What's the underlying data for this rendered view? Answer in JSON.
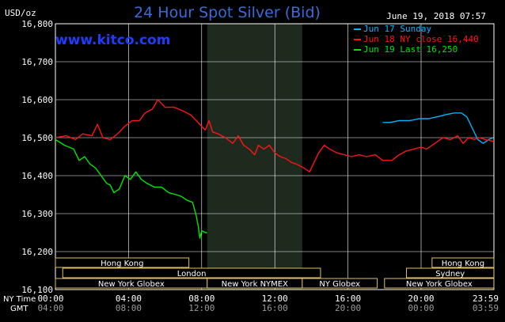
{
  "header": {
    "unit": "USD/oz",
    "title": "24 Hour Spot Silver (Bid)",
    "timestamp": "June 19, 2018 07:57",
    "watermark": "www.kitco.com"
  },
  "colors": {
    "background": "#000000",
    "grid": "#ffffff",
    "text": "#ffffff",
    "title": "#3a6bd6",
    "watermark": "#1e3cff",
    "shaded": "#1e2a1e",
    "session_border": "#e0c060",
    "session_text": "#ffffff",
    "jun17": "#00b4ff",
    "jun18": "#ff1414",
    "jun19": "#00e600"
  },
  "sessions": [
    {
      "label": "Hong Kong"
    },
    {
      "label": "London"
    },
    {
      "label": "New York Globex"
    },
    {
      "label": "New York NYMEX"
    },
    {
      "label": "NY Globex"
    },
    {
      "label": "Hong Kong"
    },
    {
      "label": "Sydney"
    },
    {
      "label": "New York Globex"
    }
  ],
  "chart_data": {
    "type": "line",
    "title": "24 Hour Spot Silver (Bid)",
    "ylabel": "USD/oz",
    "ylim": [
      16100,
      16800
    ],
    "xlim": [
      0,
      23.983
    ],
    "yticks": [
      16100,
      16200,
      16300,
      16400,
      16500,
      16600,
      16700,
      16800
    ],
    "ytick_labels": [
      "16,100",
      "16,200",
      "16,300",
      "16,400",
      "16,500",
      "16,600",
      "16,700",
      "16,800"
    ],
    "xticks": [
      0,
      4,
      8,
      12,
      16,
      20,
      23.983
    ],
    "xtick_labels_ny": [
      "00:00",
      "04:00",
      "08:00",
      "12:00",
      "16:00",
      "20:00",
      "23:59"
    ],
    "xtick_labels_gmt": [
      "04:00",
      "08:00",
      "12:00",
      "16:00",
      "20:00",
      "00:00",
      "03:59"
    ],
    "x_axis_label_ny": "NY Time",
    "x_axis_label_gmt": "GMT",
    "shaded_region_hours": [
      8.3,
      13.5
    ],
    "grid": true,
    "legend_position": "top-right",
    "series": [
      {
        "name": "Jun 17 Sunday",
        "key": "jun17",
        "points": [
          [
            17.9,
            16540
          ],
          [
            18.3,
            16540
          ],
          [
            18.8,
            16545
          ],
          [
            19.4,
            16545
          ],
          [
            19.9,
            16550
          ],
          [
            20.4,
            16550
          ],
          [
            20.9,
            16555
          ],
          [
            21.3,
            16560
          ],
          [
            21.8,
            16565
          ],
          [
            22.2,
            16565
          ],
          [
            22.5,
            16555
          ],
          [
            22.8,
            16525
          ],
          [
            23.1,
            16495
          ],
          [
            23.4,
            16485
          ],
          [
            23.7,
            16495
          ],
          [
            23.95,
            16500
          ]
        ]
      },
      {
        "name": "Jun 18 NY close 16,440",
        "key": "jun18",
        "points": [
          [
            0,
            16500
          ],
          [
            0.6,
            16505
          ],
          [
            1.1,
            16495
          ],
          [
            1.5,
            16510
          ],
          [
            2.0,
            16505
          ],
          [
            2.3,
            16535
          ],
          [
            2.6,
            16500
          ],
          [
            3.0,
            16495
          ],
          [
            3.4,
            16510
          ],
          [
            3.8,
            16530
          ],
          [
            4.2,
            16545
          ],
          [
            4.6,
            16545
          ],
          [
            4.9,
            16565
          ],
          [
            5.3,
            16575
          ],
          [
            5.6,
            16600
          ],
          [
            6.0,
            16580
          ],
          [
            6.5,
            16580
          ],
          [
            7.0,
            16570
          ],
          [
            7.4,
            16560
          ],
          [
            7.7,
            16545
          ],
          [
            8.0,
            16530
          ],
          [
            8.2,
            16520
          ],
          [
            8.4,
            16545
          ],
          [
            8.6,
            16515
          ],
          [
            8.9,
            16510
          ],
          [
            9.3,
            16500
          ],
          [
            9.7,
            16485
          ],
          [
            10.0,
            16505
          ],
          [
            10.3,
            16480
          ],
          [
            10.6,
            16470
          ],
          [
            10.9,
            16455
          ],
          [
            11.1,
            16480
          ],
          [
            11.4,
            16470
          ],
          [
            11.7,
            16480
          ],
          [
            12.0,
            16460
          ],
          [
            12.3,
            16450
          ],
          [
            12.6,
            16445
          ],
          [
            12.9,
            16435
          ],
          [
            13.2,
            16430
          ],
          [
            13.6,
            16420
          ],
          [
            13.9,
            16410
          ],
          [
            14.2,
            16440
          ],
          [
            14.4,
            16460
          ],
          [
            14.7,
            16480
          ],
          [
            15.0,
            16470
          ],
          [
            15.4,
            16460
          ],
          [
            15.8,
            16455
          ],
          [
            16.2,
            16450
          ],
          [
            16.6,
            16455
          ],
          [
            17.0,
            16450
          ],
          [
            17.5,
            16455
          ],
          [
            17.9,
            16440
          ],
          [
            18.4,
            16440
          ],
          [
            18.8,
            16455
          ],
          [
            19.2,
            16465
          ],
          [
            19.6,
            16470
          ],
          [
            20.0,
            16475
          ],
          [
            20.3,
            16470
          ],
          [
            20.6,
            16480
          ],
          [
            20.9,
            16490
          ],
          [
            21.2,
            16500
          ],
          [
            21.6,
            16495
          ],
          [
            22.0,
            16505
          ],
          [
            22.3,
            16485
          ],
          [
            22.6,
            16500
          ],
          [
            22.9,
            16495
          ],
          [
            23.2,
            16500
          ],
          [
            23.5,
            16495
          ],
          [
            23.8,
            16492
          ],
          [
            23.98,
            16490
          ]
        ]
      },
      {
        "name": "Jun 19 Last 16,250",
        "key": "jun19",
        "points": [
          [
            0,
            16495
          ],
          [
            0.5,
            16480
          ],
          [
            1.0,
            16470
          ],
          [
            1.3,
            16440
          ],
          [
            1.6,
            16450
          ],
          [
            1.9,
            16430
          ],
          [
            2.2,
            16420
          ],
          [
            2.5,
            16400
          ],
          [
            2.8,
            16380
          ],
          [
            3.0,
            16375
          ],
          [
            3.2,
            16355
          ],
          [
            3.5,
            16365
          ],
          [
            3.8,
            16400
          ],
          [
            4.1,
            16390
          ],
          [
            4.4,
            16410
          ],
          [
            4.7,
            16390
          ],
          [
            5.0,
            16380
          ],
          [
            5.4,
            16370
          ],
          [
            5.8,
            16370
          ],
          [
            6.2,
            16355
          ],
          [
            6.6,
            16350
          ],
          [
            6.9,
            16345
          ],
          [
            7.2,
            16335
          ],
          [
            7.5,
            16330
          ],
          [
            7.7,
            16295
          ],
          [
            7.8,
            16270
          ],
          [
            7.9,
            16235
          ],
          [
            8.0,
            16255
          ],
          [
            8.2,
            16250
          ],
          [
            8.3,
            16250
          ]
        ]
      }
    ]
  }
}
